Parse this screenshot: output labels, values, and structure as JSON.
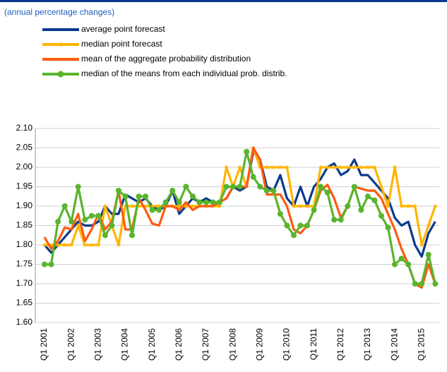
{
  "chart_data": {
    "type": "line",
    "subtitle": "(annual percentage changes)",
    "categories": [
      "Q1 2001",
      null,
      null,
      null,
      "Q1 2002",
      null,
      null,
      null,
      "Q1 2003",
      null,
      null,
      null,
      "Q1 2004",
      null,
      null,
      null,
      "Q1 2005",
      null,
      null,
      null,
      "Q1 2006",
      null,
      null,
      null,
      "Q1 2007",
      null,
      null,
      null,
      "Q1 2008",
      null,
      null,
      null,
      "Q1 2009",
      null,
      null,
      null,
      "Q1 2010",
      null,
      null,
      null,
      "Q1 2011",
      null,
      null,
      null,
      "Q1 2012",
      null,
      null,
      null,
      "Q1 2013",
      null,
      null,
      null,
      "Q1 2014",
      null,
      null,
      null,
      "Q1 2015",
      null,
      null
    ],
    "series": [
      {
        "name": "average point forecast",
        "color": "#0a3a8c",
        "marker": "none",
        "values": [
          1.8,
          1.78,
          1.8,
          1.82,
          1.84,
          1.86,
          1.85,
          1.85,
          1.86,
          1.9,
          1.88,
          1.88,
          1.93,
          1.92,
          1.91,
          1.92,
          1.9,
          1.89,
          1.9,
          1.94,
          1.88,
          1.9,
          1.92,
          1.91,
          1.92,
          1.91,
          1.91,
          1.92,
          1.95,
          1.94,
          1.95,
          2.04,
          2.02,
          1.95,
          1.94,
          1.98,
          1.92,
          1.9,
          1.95,
          1.9,
          1.95,
          1.97,
          2.0,
          2.01,
          1.98,
          1.99,
          2.02,
          1.98,
          1.98,
          1.96,
          1.94,
          1.92,
          1.87,
          1.85,
          1.86,
          1.8,
          1.77,
          1.83,
          1.86
        ]
      },
      {
        "name": "median point forecast",
        "color": "#ffb400",
        "marker": "star",
        "values": [
          1.8,
          1.8,
          1.8,
          1.8,
          1.8,
          1.85,
          1.8,
          1.8,
          1.8,
          1.9,
          1.85,
          1.8,
          1.9,
          1.9,
          1.9,
          1.9,
          1.9,
          1.9,
          1.9,
          1.9,
          1.9,
          1.9,
          1.9,
          1.9,
          1.9,
          1.9,
          1.9,
          2.0,
          1.95,
          2.0,
          1.95,
          2.05,
          2.0,
          2.0,
          2.0,
          2.0,
          2.0,
          1.9,
          1.9,
          1.9,
          1.9,
          2.0,
          2.0,
          2.0,
          2.0,
          2.0,
          2.0,
          2.0,
          2.0,
          2.0,
          1.95,
          1.9,
          2.0,
          1.9,
          1.9,
          1.9,
          1.8,
          1.85,
          1.9
        ]
      },
      {
        "name": "mean of the aggregate probability distribution",
        "color": "#ff5a0f",
        "marker": "none",
        "values": [
          1.82,
          1.79,
          1.81,
          1.845,
          1.84,
          1.88,
          1.81,
          1.84,
          1.88,
          1.84,
          1.86,
          1.94,
          1.84,
          1.84,
          1.92,
          1.89,
          1.855,
          1.85,
          1.9,
          1.9,
          1.89,
          1.91,
          1.89,
          1.9,
          1.9,
          1.9,
          1.91,
          1.92,
          1.95,
          1.95,
          1.95,
          2.05,
          2.02,
          1.93,
          1.93,
          1.93,
          1.9,
          1.84,
          1.83,
          1.85,
          1.89,
          1.94,
          1.955,
          1.92,
          1.87,
          1.9,
          1.95,
          1.945,
          1.94,
          1.94,
          1.92,
          1.88,
          1.84,
          1.79,
          1.75,
          1.7,
          1.69,
          1.75,
          1.7
        ]
      },
      {
        "name": "median of the means from each individual prob. distrib.",
        "color": "#5ab42d",
        "marker": "circle",
        "values": [
          1.75,
          1.75,
          1.86,
          1.9,
          1.86,
          1.95,
          1.865,
          1.875,
          1.875,
          1.825,
          1.85,
          1.94,
          1.925,
          1.825,
          1.925,
          1.925,
          1.89,
          1.89,
          1.91,
          1.94,
          1.91,
          1.95,
          1.925,
          1.91,
          1.91,
          1.91,
          1.91,
          1.95,
          1.95,
          1.95,
          2.04,
          1.975,
          1.95,
          1.94,
          1.94,
          1.88,
          1.85,
          1.825,
          1.85,
          1.85,
          1.89,
          1.95,
          1.935,
          1.865,
          1.865,
          1.9,
          1.95,
          1.89,
          1.925,
          1.915,
          1.875,
          1.845,
          1.75,
          1.765,
          1.75,
          1.7,
          1.7,
          1.775,
          1.7
        ]
      }
    ],
    "ylim": [
      1.6,
      2.1
    ],
    "yticks": [
      {
        "value": 1.6,
        "label": "1.60"
      },
      {
        "value": 1.65,
        "label": "1.65"
      },
      {
        "value": 1.7,
        "label": "1.70"
      },
      {
        "value": 1.75,
        "label": "1.75"
      },
      {
        "value": 1.8,
        "label": "1.80"
      },
      {
        "value": 1.85,
        "label": "1.85"
      },
      {
        "value": 1.9,
        "label": "1.90"
      },
      {
        "value": 1.95,
        "label": "1.95"
      },
      {
        "value": 2.0,
        "label": "2.00"
      },
      {
        "value": 2.05,
        "label": "2.05"
      },
      {
        "value": 2.1,
        "label": "2.10"
      }
    ],
    "grid": true,
    "legend": "top-left"
  }
}
